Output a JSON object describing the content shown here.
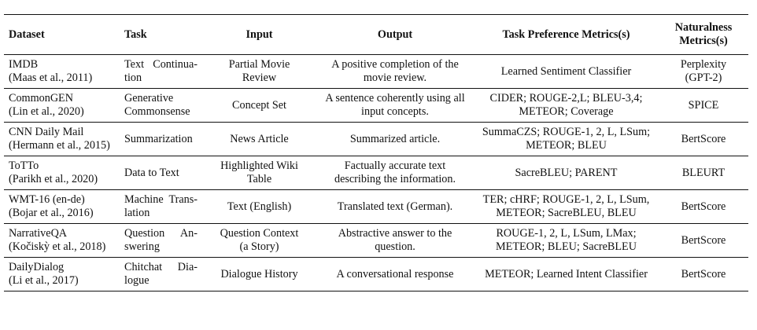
{
  "table": {
    "headers": [
      {
        "lines": [
          "Dataset"
        ]
      },
      {
        "lines": [
          "Task"
        ]
      },
      {
        "lines": [
          "Input"
        ]
      },
      {
        "lines": [
          "Output"
        ]
      },
      {
        "lines": [
          "Task Preference Metrics(s)"
        ]
      },
      {
        "lines": [
          "Naturalness",
          "Metrics(s)"
        ]
      }
    ],
    "rows": [
      {
        "dataset": [
          "IMDB",
          "(Maas et al., 2011)"
        ],
        "task": [
          "Text Continua-",
          "tion"
        ],
        "input": [
          "Partial Movie",
          "Review"
        ],
        "output": [
          "A positive completion of the",
          "movie review."
        ],
        "task_metrics": [
          "Learned Sentiment Classifier"
        ],
        "natural_metrics": [
          "Perplexity",
          "(GPT-2)"
        ]
      },
      {
        "dataset": [
          "CommonGEN",
          "(Lin et al., 2020)"
        ],
        "task": [
          "Generative",
          "Commonsense"
        ],
        "input": [
          "Concept Set"
        ],
        "output": [
          "A sentence coherently using all",
          "input concepts."
        ],
        "task_metrics": [
          "CIDER; ROUGE-2,L; BLEU-3,4;",
          "METEOR; Coverage"
        ],
        "natural_metrics": [
          "SPICE"
        ]
      },
      {
        "dataset": [
          "CNN Daily Mail",
          "(Hermann et al., 2015)"
        ],
        "task": [
          "Summarization"
        ],
        "input": [
          "News Article"
        ],
        "output": [
          "Summarized article."
        ],
        "task_metrics": [
          "SummaCZS; ROUGE-1, 2, L, LSum;",
          "METEOR; BLEU"
        ],
        "natural_metrics": [
          "BertScore"
        ]
      },
      {
        "dataset": [
          "ToTTo",
          "(Parikh et al., 2020)"
        ],
        "task": [
          "Data to Text"
        ],
        "input": [
          "Highlighted Wiki",
          "Table"
        ],
        "output": [
          "Factually accurate text",
          "describing the information."
        ],
        "task_metrics": [
          "SacreBLEU; PARENT"
        ],
        "natural_metrics": [
          "BLEURT"
        ]
      },
      {
        "dataset": [
          "WMT-16 (en-de)",
          "(Bojar et al., 2016)"
        ],
        "task": [
          "Machine Trans-",
          "lation"
        ],
        "input": [
          "Text (English)"
        ],
        "output": [
          "Translated text (German)."
        ],
        "task_metrics": [
          "TER; cHRF; ROUGE-1, 2, L, LSum,",
          "METEOR; SacreBLEU, BLEU"
        ],
        "natural_metrics": [
          "BertScore"
        ]
      },
      {
        "dataset": [
          "NarrativeQA",
          "(Kočiskỳ et al., 2018)"
        ],
        "task": [
          "Question An-",
          "swering"
        ],
        "input": [
          "Question Context",
          "(a Story)"
        ],
        "output": [
          "Abstractive answer to the",
          "question."
        ],
        "task_metrics": [
          "ROUGE-1, 2, L, LSum, LMax;",
          "METEOR; BLEU; SacreBLEU"
        ],
        "natural_metrics": [
          "BertScore"
        ]
      },
      {
        "dataset": [
          "DailyDialog",
          "(Li et al., 2017)"
        ],
        "task": [
          "Chitchat Dia-",
          "logue"
        ],
        "input": [
          "Dialogue History"
        ],
        "output": [
          "A conversational response"
        ],
        "task_metrics": [
          "METEOR; Learned Intent Classifier"
        ],
        "natural_metrics": [
          "BertScore"
        ]
      }
    ]
  }
}
